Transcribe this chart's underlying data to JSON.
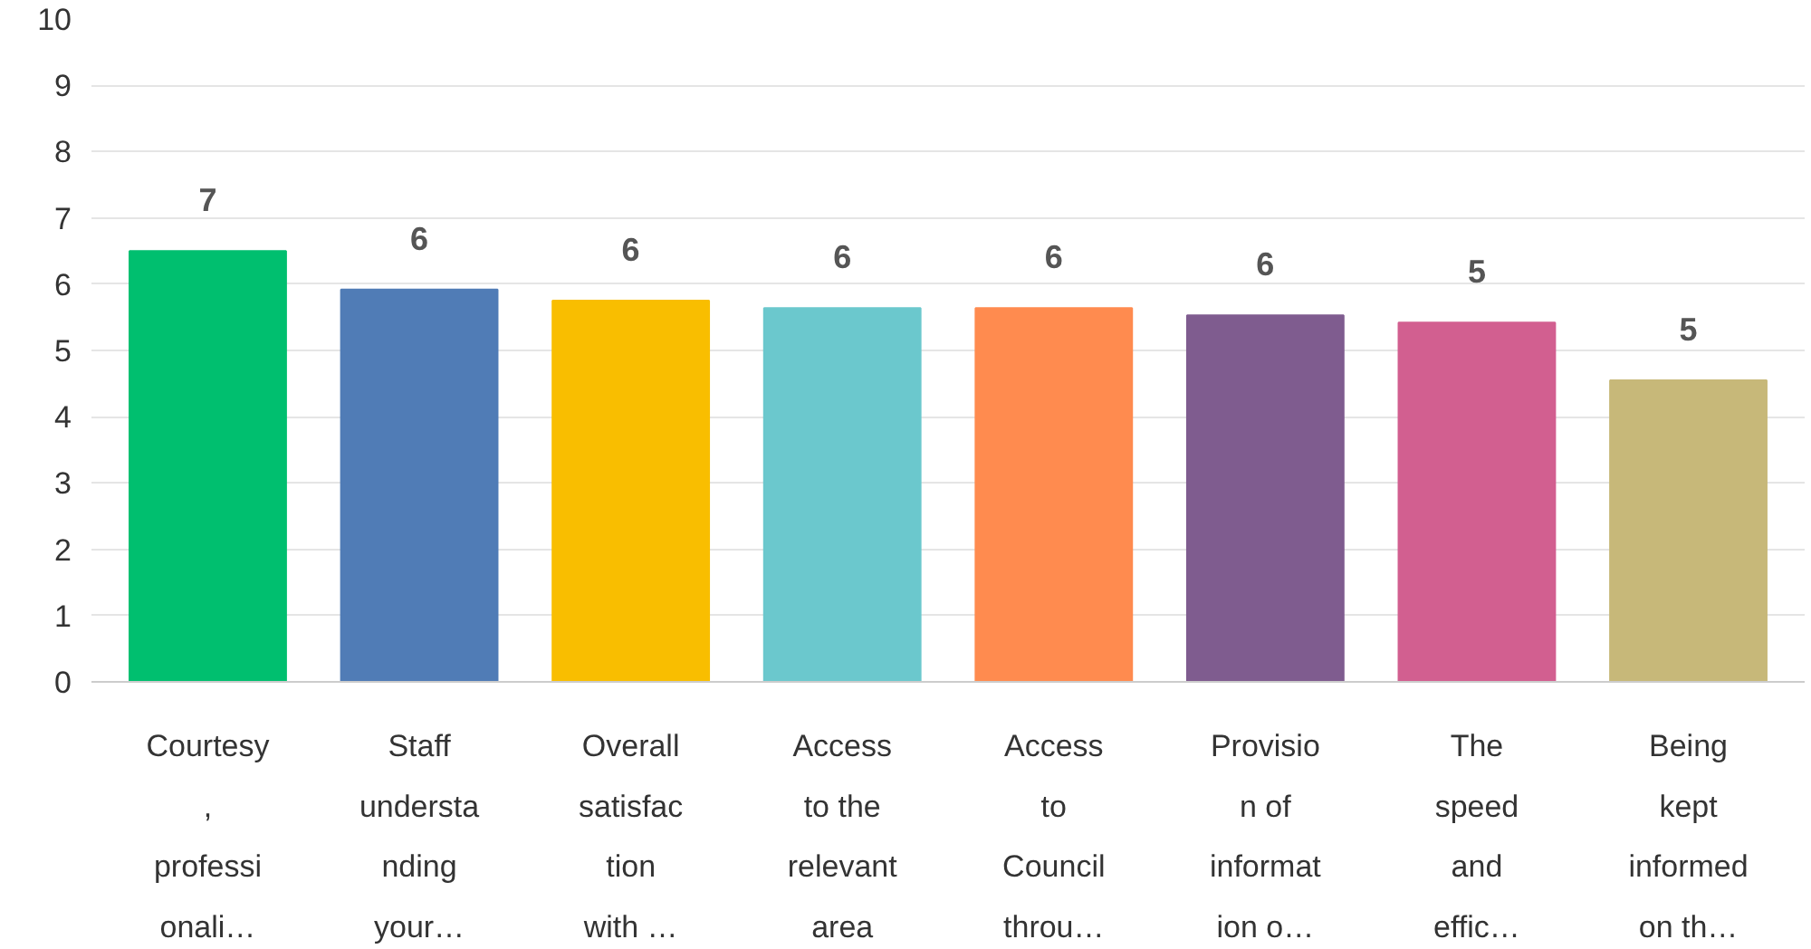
{
  "chart_data": {
    "type": "bar",
    "categories": [
      "Courtesy\n,\nprofessi\nonali…",
      "Staff\nundersta\nnding\nyour…",
      "Overall\nsatisfac\ntion\nwith …",
      "Access\nto the\nrelevant\narea",
      "Access\nto\nCouncil\nthrou…",
      "Provisio\nn of\ninformat\nion o…",
      "The\nspeed\nand\neffic…",
      "Being\nkept\ninformed\non th…"
    ],
    "values": [
      6.5,
      5.92,
      5.75,
      5.64,
      5.64,
      5.53,
      5.42,
      4.55
    ],
    "value_labels": [
      "7",
      "6",
      "6",
      "6",
      "6",
      "6",
      "5",
      "5"
    ],
    "colors": [
      "#00bf6f",
      "#507cb6",
      "#f9be00",
      "#6bc8cd",
      "#ff8b4f",
      "#7f5c8f",
      "#d25f90",
      "#c7b879"
    ],
    "ylim": [
      0,
      10
    ],
    "yticks": [
      0,
      1,
      2,
      3,
      4,
      5,
      6,
      7,
      8,
      9,
      10
    ],
    "grid": "y"
  }
}
